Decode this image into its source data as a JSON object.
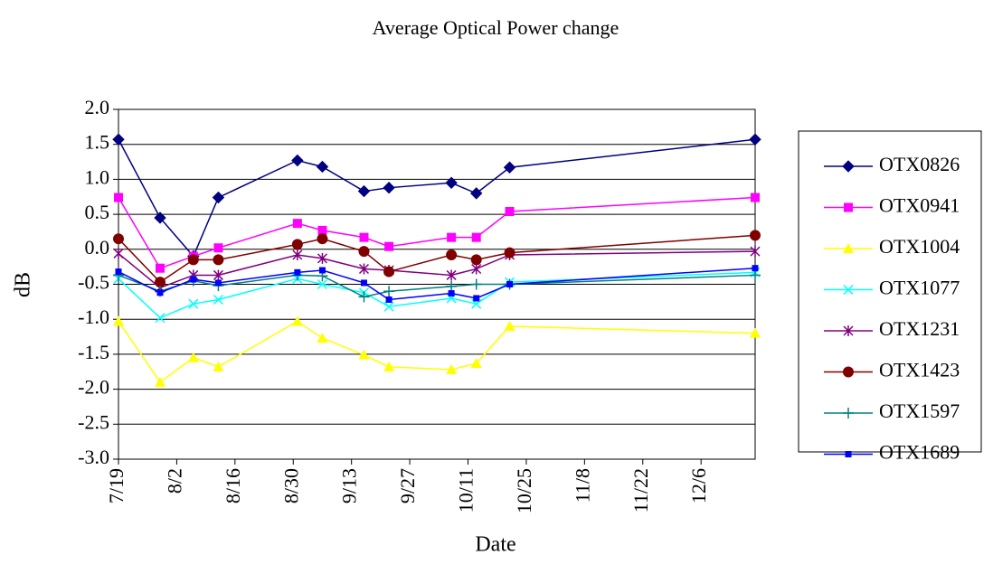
{
  "chart_data": {
    "type": "line",
    "title": "Average Optical Power change",
    "x_label": "Date",
    "y_label": "dB",
    "x": [
      "7/19",
      "7/29",
      "8/6",
      "8/12",
      "8/31",
      "9/6",
      "9/16",
      "9/22",
      "10/7",
      "10/13",
      "10/21",
      "12/19"
    ],
    "xlim": [
      "7/19",
      "12/19"
    ],
    "xticks": [
      "7/19",
      "8/2",
      "8/16",
      "8/30",
      "9/13",
      "9/27",
      "10/11",
      "10/25",
      "11/8",
      "11/22",
      "12/6"
    ],
    "ylim": [
      -3,
      2
    ],
    "yticks": [
      {
        "value": -3,
        "label": "-3.0"
      },
      {
        "value": -2.5,
        "label": "-2.5"
      },
      {
        "value": -2,
        "label": "-2.0"
      },
      {
        "value": -1.5,
        "label": "-1.5"
      },
      {
        "value": -1,
        "label": "-1.0"
      },
      {
        "value": -0.5,
        "label": "-0.5"
      },
      {
        "value": 0,
        "label": "0.0"
      },
      {
        "value": 0.5,
        "label": "0.5"
      },
      {
        "value": 1,
        "label": "1.0"
      },
      {
        "value": 1.5,
        "label": "1.5"
      },
      {
        "value": 2,
        "label": "2.0"
      }
    ],
    "grid": true,
    "legend": "right",
    "series": [
      {
        "name": "OTX0826",
        "color": "#000080",
        "marker": "diamond",
        "values": [
          1.57,
          0.45,
          -0.1,
          0.74,
          1.27,
          1.18,
          0.83,
          0.88,
          0.95,
          0.8,
          1.17,
          1.57
        ]
      },
      {
        "name": "OTX0941",
        "color": "#ff00ff",
        "marker": "square",
        "values": [
          0.74,
          -0.27,
          -0.1,
          0.02,
          0.37,
          0.27,
          0.17,
          0.04,
          0.17,
          0.17,
          0.54,
          0.74
        ]
      },
      {
        "name": "OTX1004",
        "color": "#ffff00",
        "marker": "triangle",
        "values": [
          -1.03,
          -1.9,
          -1.55,
          -1.68,
          -1.03,
          -1.27,
          -1.51,
          -1.68,
          -1.72,
          -1.63,
          -1.1,
          -1.2
        ]
      },
      {
        "name": "OTX1077",
        "color": "#00ffff",
        "marker": "x",
        "values": [
          -0.42,
          -0.98,
          -0.78,
          -0.72,
          -0.42,
          -0.5,
          -0.62,
          -0.82,
          -0.7,
          -0.78,
          -0.47,
          -0.33
        ]
      },
      {
        "name": "OTX1231",
        "color": "#800080",
        "marker": "star",
        "values": [
          -0.06,
          -0.55,
          -0.37,
          -0.37,
          -0.08,
          -0.13,
          -0.28,
          -0.3,
          -0.37,
          -0.28,
          -0.08,
          -0.03
        ]
      },
      {
        "name": "OTX1423",
        "color": "#800000",
        "marker": "circle",
        "values": [
          0.15,
          -0.47,
          -0.15,
          -0.15,
          0.07,
          0.15,
          -0.03,
          -0.32,
          -0.08,
          -0.15,
          -0.05,
          0.2
        ]
      },
      {
        "name": "OTX1597",
        "color": "#008080",
        "marker": "plus",
        "values": [
          -0.37,
          -0.6,
          -0.45,
          -0.52,
          -0.37,
          -0.38,
          -0.68,
          -0.6,
          -0.53,
          -0.5,
          -0.5,
          -0.37
        ]
      },
      {
        "name": "OTX1689",
        "color": "#0000ff",
        "marker": "smallsquare",
        "values": [
          -0.32,
          -0.62,
          -0.43,
          -0.48,
          -0.33,
          -0.3,
          -0.48,
          -0.72,
          -0.63,
          -0.7,
          -0.5,
          -0.27
        ]
      }
    ]
  }
}
